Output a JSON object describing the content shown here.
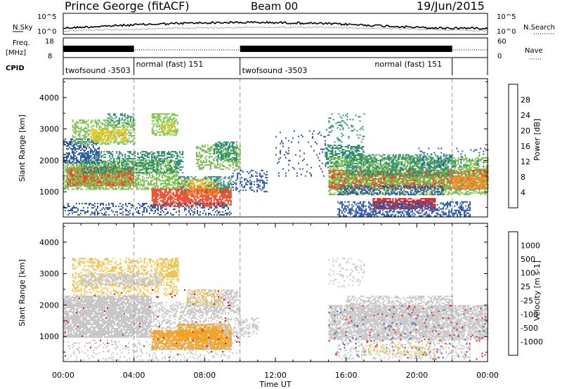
{
  "header": {
    "title_left": "Prince George (fitACF)",
    "title_center": "Beam 00",
    "title_right": "19/Jun/2015"
  },
  "chart_data": [
    {
      "type": "line",
      "name": "noise-panel",
      "left_label": "N.Sky",
      "right_label": "N.Search",
      "left_ticks": [
        "10^5",
        "10^0"
      ],
      "right_ticks": [
        "10^5",
        "10^0"
      ],
      "series": [
        {
          "name": "N.Sky",
          "style": "solid"
        },
        {
          "name": "N.Search",
          "style": "dotted"
        }
      ]
    },
    {
      "type": "line",
      "name": "frequency-panel",
      "left_label": "Freq.",
      "left_unit": "[MHz]",
      "left_ticks": [
        18,
        8
      ],
      "right_label": "Nave",
      "right_ticks": [
        60,
        0
      ],
      "freq_segments_hours": [
        [
          0.0,
          4.0
        ],
        [
          10.0,
          22.0
        ]
      ]
    },
    {
      "type": "table",
      "name": "cpid-panel",
      "label": "CPID",
      "boundaries_hours": [
        0.0,
        4.0,
        10.0,
        22.0
      ],
      "modes": [
        {
          "start": 0.0,
          "label": "twofsound -3503"
        },
        {
          "start": 4.0,
          "label": "normal (fast) 151"
        },
        {
          "start": 10.0,
          "label": "twofsound -3503"
        },
        {
          "start": 22.0,
          "label": "normal (fast) 151",
          "label_hour": 17.5
        }
      ]
    },
    {
      "type": "heatmap",
      "name": "power-panel",
      "ylabel": "Slant Range [km]",
      "ylim": [
        200,
        4600
      ],
      "yticks": [
        1000,
        2000,
        3000,
        4000
      ],
      "colorbar_label": "Power [dB]",
      "colorbar_ticks": [
        4,
        8,
        12,
        16,
        20,
        24,
        28
      ],
      "colorbar_colors": [
        "#1414e6",
        "#2a56a8",
        "#2f8e6e",
        "#7ac04c",
        "#e8c820",
        "#f5902a",
        "#ee4020",
        "#e81414"
      ]
    },
    {
      "type": "heatmap",
      "name": "velocity-panel",
      "ylabel": "Slant Range [km]",
      "ylim": [
        200,
        4600
      ],
      "yticks": [
        1000,
        2000,
        3000,
        4000
      ],
      "colorbar_label": "Velocity [m s-1]",
      "colorbar_ticks": [
        "1000",
        "500",
        "100",
        "25",
        "-25",
        "-100",
        "-500",
        "-1000"
      ],
      "colorbar_colors": [
        "#1e28c8",
        "#3c5ab4",
        "#2e9e66",
        "#66cc44",
        "#c8c8c8",
        "#ecc24a",
        "#f0a020",
        "#f06010",
        "#e81414"
      ],
      "xlabel": "Time UT",
      "xlim_hours": [
        0,
        24
      ],
      "xticks": [
        "00:00",
        "04:00",
        "08:00",
        "12:00",
        "16:00",
        "20:00",
        "00:00"
      ]
    }
  ],
  "power_regions": [
    {
      "t0": 0.2,
      "t1": 4.0,
      "r0": 1200,
      "r1": 1800,
      "c": "#ee4020",
      "d": 0.85
    },
    {
      "t0": 0.0,
      "t1": 6.5,
      "r0": 1100,
      "r1": 2000,
      "c": "#7ac04c",
      "d": 0.6
    },
    {
      "t0": 1.0,
      "t1": 6.8,
      "r0": 1600,
      "r1": 2300,
      "c": "#2f8e6e",
      "d": 0.45
    },
    {
      "t0": 0.0,
      "t1": 2.0,
      "r0": 1900,
      "r1": 2700,
      "c": "#2a56a8",
      "d": 0.5
    },
    {
      "t0": 0.5,
      "t1": 4.0,
      "r0": 2500,
      "r1": 3300,
      "c": "#7ac04c",
      "d": 0.5
    },
    {
      "t0": 1.5,
      "t1": 3.5,
      "r0": 2600,
      "r1": 3000,
      "c": "#e8c820",
      "d": 0.55
    },
    {
      "t0": 2.5,
      "t1": 4.0,
      "r0": 3100,
      "r1": 3500,
      "c": "#2f8e6e",
      "d": 0.4
    },
    {
      "t0": 5.0,
      "t1": 6.5,
      "r0": 2800,
      "r1": 3500,
      "c": "#7ac04c",
      "d": 0.55
    },
    {
      "t0": 5.5,
      "t1": 6.3,
      "r0": 2900,
      "r1": 3200,
      "c": "#e8c820",
      "d": 0.5
    },
    {
      "t0": 6.5,
      "t1": 9.5,
      "r0": 1000,
      "r1": 1500,
      "c": "#2f8e6e",
      "d": 0.55
    },
    {
      "t0": 6.5,
      "t1": 8.5,
      "r0": 1100,
      "r1": 1400,
      "c": "#e8c820",
      "d": 0.4
    },
    {
      "t0": 5.0,
      "t1": 9.5,
      "r0": 550,
      "r1": 1100,
      "c": "#ee4020",
      "d": 0.75
    },
    {
      "t0": 7.0,
      "t1": 8.8,
      "r0": 900,
      "r1": 1200,
      "c": "#f5902a",
      "d": 0.5
    },
    {
      "t0": 7.5,
      "t1": 10.0,
      "r0": 1700,
      "r1": 2500,
      "c": "#7ac04c",
      "d": 0.45
    },
    {
      "t0": 8.5,
      "t1": 9.8,
      "r0": 2000,
      "r1": 2600,
      "c": "#2f8e6e",
      "d": 0.5
    },
    {
      "t0": 0.0,
      "t1": 9.5,
      "r0": 250,
      "r1": 650,
      "c": "#2a56a8",
      "d": 0.3
    },
    {
      "t0": 9.5,
      "t1": 11.5,
      "r0": 1000,
      "r1": 1700,
      "c": "#2a56a8",
      "d": 0.3
    },
    {
      "t0": 12.0,
      "t1": 15.0,
      "r0": 1500,
      "r1": 3000,
      "c": "#2a56a8",
      "d": 0.07
    },
    {
      "t0": 14.8,
      "t1": 17.0,
      "r0": 1800,
      "r1": 2500,
      "c": "#2f8e6e",
      "d": 0.55
    },
    {
      "t0": 15.0,
      "t1": 24.0,
      "r0": 1100,
      "r1": 1700,
      "c": "#ee4020",
      "d": 0.7
    },
    {
      "t0": 15.0,
      "t1": 24.0,
      "r0": 900,
      "r1": 2100,
      "c": "#7ac04c",
      "d": 0.5
    },
    {
      "t0": 16.0,
      "t1": 22.0,
      "r0": 1500,
      "r1": 2200,
      "c": "#2f8e6e",
      "d": 0.45
    },
    {
      "t0": 15.5,
      "t1": 21.5,
      "r0": 900,
      "r1": 1200,
      "c": "#2a56a8",
      "d": 0.5
    },
    {
      "t0": 17.5,
      "t1": 21.0,
      "r0": 450,
      "r1": 800,
      "c": "#e81414",
      "d": 0.75
    },
    {
      "t0": 15.5,
      "t1": 23.0,
      "r0": 250,
      "r1": 700,
      "c": "#2a56a8",
      "d": 0.5
    },
    {
      "t0": 22.0,
      "t1": 24.0,
      "r0": 1100,
      "r1": 1500,
      "c": "#f5902a",
      "d": 0.7
    },
    {
      "t0": 15.0,
      "t1": 17.0,
      "r0": 2600,
      "r1": 3500,
      "c": "#2f8e6e",
      "d": 0.15
    },
    {
      "t0": 20.0,
      "t1": 24.0,
      "r0": 1800,
      "r1": 2400,
      "c": "#2a56a8",
      "d": 0.12
    }
  ],
  "velocity_regions": [
    {
      "t0": 0.0,
      "t1": 5.0,
      "r0": 1000,
      "r1": 2300,
      "c": "#c8c8c8",
      "d": 0.85
    },
    {
      "t0": 5.0,
      "t1": 9.0,
      "r0": 1100,
      "r1": 2100,
      "c": "#c8c8c8",
      "d": 0.45
    },
    {
      "t0": 0.5,
      "t1": 6.5,
      "r0": 2300,
      "r1": 3500,
      "c": "#ecc24a",
      "d": 0.35
    },
    {
      "t0": 1.0,
      "t1": 5.5,
      "r0": 2600,
      "r1": 3000,
      "c": "#c8c8c8",
      "d": 0.55
    },
    {
      "t0": 5.5,
      "t1": 6.5,
      "r0": 2900,
      "r1": 3500,
      "c": "#ecc24a",
      "d": 0.55
    },
    {
      "t0": 5.0,
      "t1": 9.5,
      "r0": 600,
      "r1": 1200,
      "c": "#f0a020",
      "d": 0.85
    },
    {
      "t0": 6.5,
      "t1": 9.5,
      "r0": 900,
      "r1": 1400,
      "c": "#f0a020",
      "d": 0.6
    },
    {
      "t0": 7.0,
      "t1": 10.0,
      "r0": 1700,
      "r1": 2500,
      "c": "#c8c8c8",
      "d": 0.5
    },
    {
      "t0": 7.0,
      "t1": 9.0,
      "r0": 2000,
      "r1": 2500,
      "c": "#ecc24a",
      "d": 0.35
    },
    {
      "t0": 9.0,
      "t1": 11.0,
      "r0": 1000,
      "r1": 1600,
      "c": "#c8c8c8",
      "d": 0.35
    },
    {
      "t0": 0.0,
      "t1": 10.0,
      "r0": 250,
      "r1": 900,
      "c": "#c8c8c8",
      "d": 0.15
    },
    {
      "t0": 15.0,
      "t1": 24.0,
      "r0": 900,
      "r1": 2000,
      "c": "#c8c8c8",
      "d": 0.75
    },
    {
      "t0": 16.0,
      "t1": 22.0,
      "r0": 1500,
      "r1": 2300,
      "c": "#c8c8c8",
      "d": 0.45
    },
    {
      "t0": 15.5,
      "t1": 23.0,
      "r0": 300,
      "r1": 900,
      "c": "#c8c8c8",
      "d": 0.25
    },
    {
      "t0": 17.0,
      "t1": 21.0,
      "r0": 400,
      "r1": 800,
      "c": "#ecc24a",
      "d": 0.15
    },
    {
      "t0": 15.0,
      "t1": 24.0,
      "r0": 300,
      "r1": 2000,
      "c": "#e81414",
      "d": 0.02
    },
    {
      "t0": 15.0,
      "t1": 24.0,
      "r0": 300,
      "r1": 2000,
      "c": "#3c5ab4",
      "d": 0.02
    },
    {
      "t0": 0.0,
      "t1": 10.0,
      "r0": 300,
      "r1": 2500,
      "c": "#e81414",
      "d": 0.01
    },
    {
      "t0": 15.0,
      "t1": 17.0,
      "r0": 2600,
      "r1": 3500,
      "c": "#c8c8c8",
      "d": 0.15
    }
  ]
}
